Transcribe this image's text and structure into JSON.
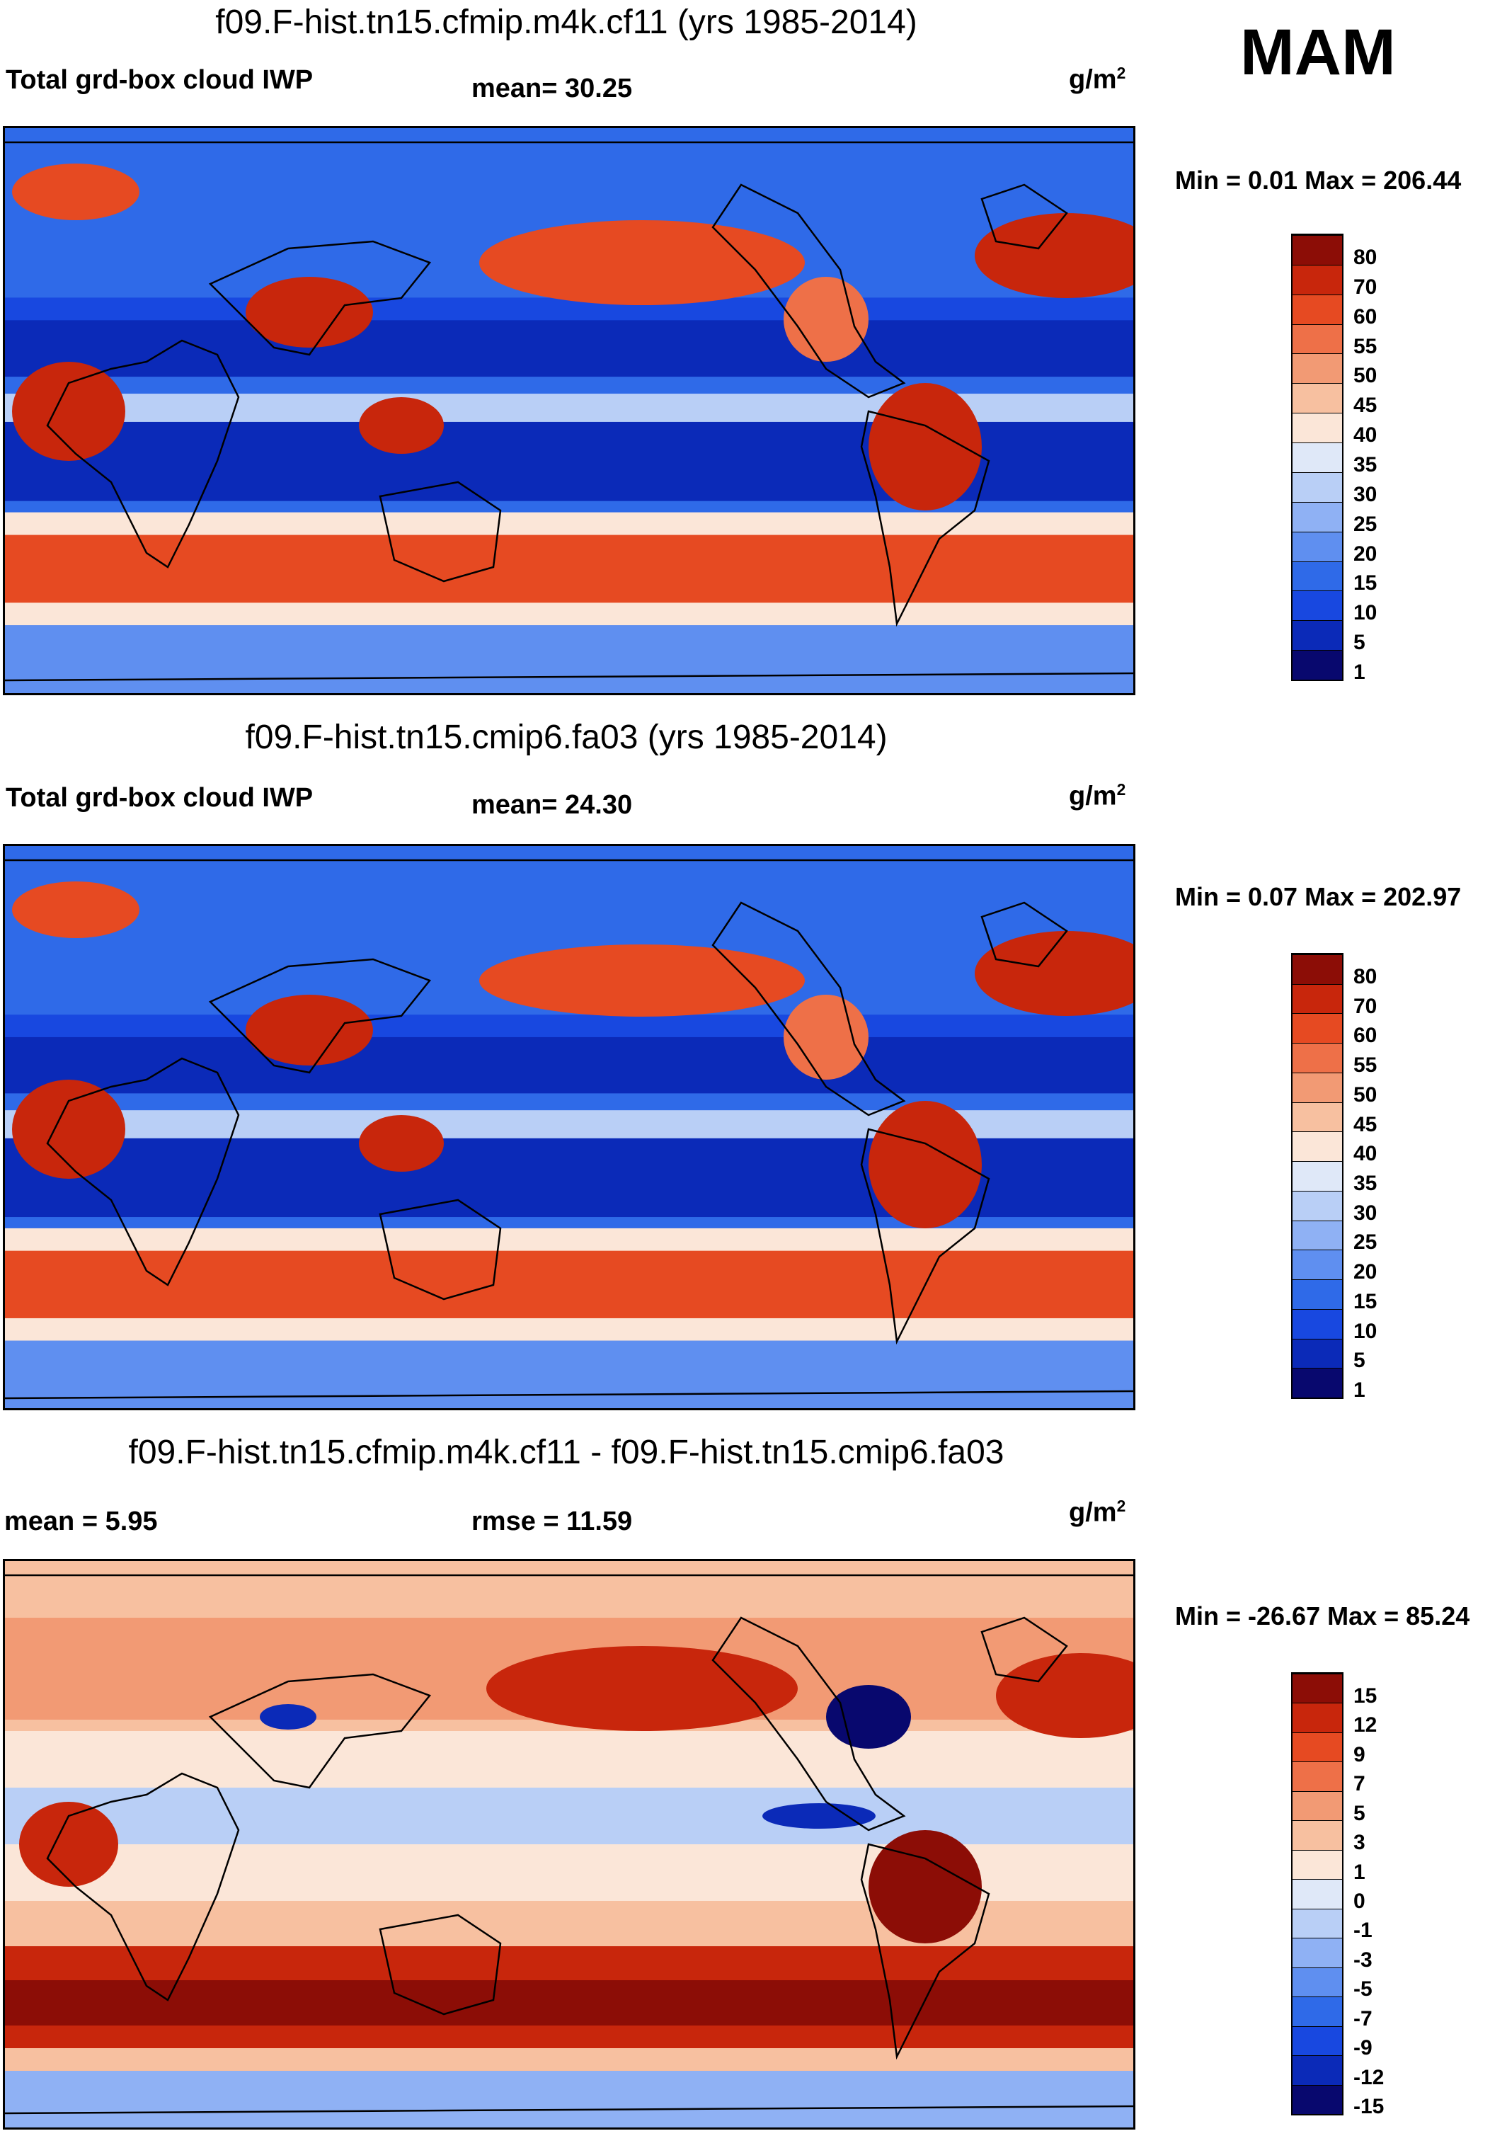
{
  "season": "MAM",
  "units": "g/m",
  "units_sup": "2",
  "panels": [
    {
      "title": "f09.F-hist.tn15.cfmip.m4k.cf11 (yrs 1985-2014)",
      "left_label": "Total grd-box cloud IWP",
      "center_label": "mean=  30.25",
      "minmax": "Min =   0.01 Max = 206.44",
      "colorbar_labels": [
        "80",
        "70",
        "60",
        "55",
        "50",
        "45",
        "40",
        "35",
        "30",
        "25",
        "20",
        "15",
        "10",
        "5",
        "1"
      ]
    },
    {
      "title": "f09.F-hist.tn15.cmip6.fa03 (yrs 1985-2014)",
      "left_label": "Total grd-box cloud IWP",
      "center_label": "mean=  24.30",
      "minmax": "Min =   0.07 Max = 202.97",
      "colorbar_labels": [
        "80",
        "70",
        "60",
        "55",
        "50",
        "45",
        "40",
        "35",
        "30",
        "25",
        "20",
        "15",
        "10",
        "5",
        "1"
      ]
    },
    {
      "title": "f09.F-hist.tn15.cfmip.m4k.cf11 - f09.F-hist.tn15.cmip6.fa03",
      "left_label": "mean =   5.95",
      "center_label": "rmse =  11.59",
      "minmax": "Min = -26.67 Max =  85.24",
      "colorbar_labels": [
        "15",
        "12",
        "9",
        "7",
        "5",
        "3",
        "1",
        "0",
        "-1",
        "-3",
        "-5",
        "-7",
        "-9",
        "-12",
        "-15"
      ]
    }
  ],
  "chart_data": [
    {
      "type": "heatmap",
      "title": "f09.F-hist.tn15.cfmip.m4k.cf11 (yrs 1985-2014)",
      "variable": "Total grd-box cloud IWP",
      "units": "g/m2",
      "mean": 30.25,
      "min": 0.01,
      "max": 206.44,
      "contour_levels": [
        1,
        5,
        10,
        15,
        20,
        25,
        30,
        35,
        40,
        45,
        50,
        55,
        60,
        70,
        80
      ]
    },
    {
      "type": "heatmap",
      "title": "f09.F-hist.tn15.cmip6.fa03 (yrs 1985-2014)",
      "variable": "Total grd-box cloud IWP",
      "units": "g/m2",
      "mean": 24.3,
      "min": 0.07,
      "max": 202.97,
      "contour_levels": [
        1,
        5,
        10,
        15,
        20,
        25,
        30,
        35,
        40,
        45,
        50,
        55,
        60,
        70,
        80
      ]
    },
    {
      "type": "heatmap",
      "title": "f09.F-hist.tn15.cfmip.m4k.cf11 - f09.F-hist.tn15.cmip6.fa03",
      "units": "g/m2",
      "mean": 5.95,
      "rmse": 11.59,
      "min": -26.67,
      "max": 85.24,
      "contour_levels": [
        -15,
        -12,
        -9,
        -7,
        -5,
        -3,
        -1,
        0,
        1,
        3,
        5,
        7,
        9,
        12,
        15
      ]
    }
  ],
  "palette": [
    "#08086e",
    "#0b2ab8",
    "#1848e0",
    "#2f6ae8",
    "#5f8ff0",
    "#8fb1f4",
    "#b9cff6",
    "#dfe8f8",
    "#fbe6d8",
    "#f7c0a0",
    "#f29a74",
    "#ee7048",
    "#e64a22",
    "#c8260c",
    "#8c0d06"
  ]
}
